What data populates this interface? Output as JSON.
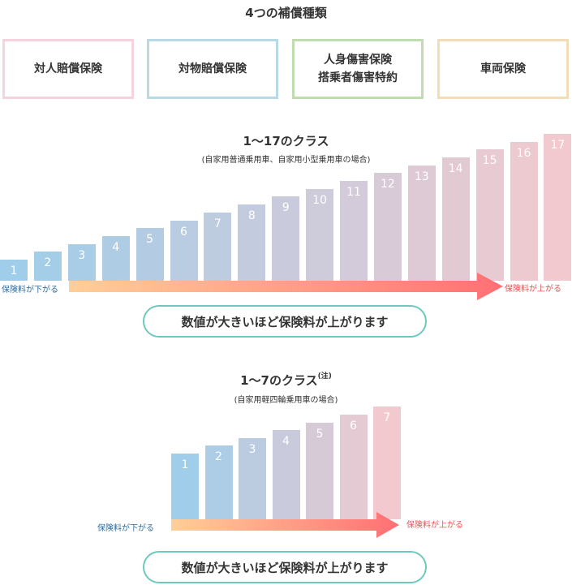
{
  "title": "4つの補償種類",
  "types": [
    {
      "label": "対人賠償保険",
      "border": "#f4d3dd"
    },
    {
      "label": "対物賠償保険",
      "border": "#b9d9e6"
    },
    {
      "label": "人身傷害保険\n搭乗者傷害特約",
      "border": "#c2dcb1"
    },
    {
      "label": "車両保険",
      "border": "#f2ddba"
    }
  ],
  "section1": {
    "title": "1～17のクラス",
    "subtitle": "(自家用普通乗用車、自家用小型乗用車の場合)",
    "classes": [
      "1",
      "2",
      "3",
      "4",
      "5",
      "6",
      "7",
      "8",
      "9",
      "10",
      "11",
      "12",
      "13",
      "14",
      "15",
      "16",
      "17"
    ],
    "low_label": "保険料が下がる",
    "high_label": "保険料が上がる",
    "pill": "数値が大きいほど保険料が上がります"
  },
  "section2": {
    "title": "1～7のクラス",
    "note": "(注)",
    "subtitle": "(自家用軽四輪乗用車の場合)",
    "classes": [
      "1",
      "2",
      "3",
      "4",
      "5",
      "6",
      "7"
    ],
    "low_label": "保険料が下がる",
    "high_label": "保険料が上がる",
    "pill": "数値が大きいほど保険料が上がります"
  },
  "colors": {
    "bar_low": "#9fcdea",
    "bar_high": "#f2c9ce",
    "arrow_start": "#ffcf98",
    "arrow_end": "#ff6f74",
    "pill_border": "#6fc8bd"
  }
}
